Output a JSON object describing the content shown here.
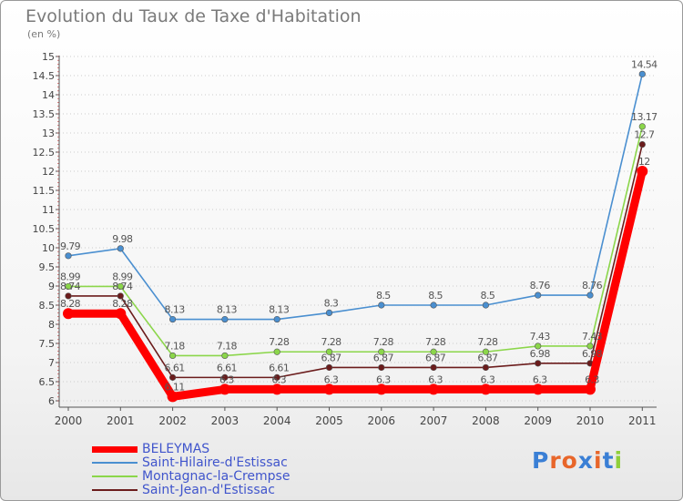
{
  "title": "Evolution du Taux de Taxe d'Habitation",
  "subtitle": "(en %)",
  "colors": {
    "frame_border": "#9a9a9a",
    "axis": "#555555",
    "grid": "#cccccc",
    "tick_text": "#444444",
    "value_text": "#555555",
    "legend_text": "#4055cc"
  },
  "chart_data": {
    "type": "line",
    "title": "Evolution du Taux de Taxe d'Habitation",
    "ylabel": "(en %)",
    "xlabel": "",
    "x": [
      "2000",
      "2001",
      "2002",
      "2003",
      "2004",
      "2005",
      "2006",
      "2007",
      "2008",
      "2009",
      "2010",
      "2011"
    ],
    "ylim": [
      6,
      15
    ],
    "yticks": [
      "6",
      "6.5",
      "7",
      "7.5",
      "8",
      "8.5",
      "9",
      "9.5",
      "10",
      "10.5",
      "11",
      "11.5",
      "12",
      "12.5",
      "13",
      "13.5",
      "14",
      "14.5",
      "15"
    ],
    "grid": "horizontal dotted",
    "legend_position": "bottom-left",
    "series": [
      {
        "name": "BELEYMAS",
        "color": "#ff0000",
        "values": [
          8.28,
          8.28,
          6.11,
          6.3,
          6.3,
          6.3,
          6.3,
          6.3,
          6.3,
          6.3,
          6.3,
          12
        ],
        "labels": [
          "8.28",
          "8.28",
          "6.11",
          "6.3",
          "6.3",
          "6.3",
          "6.3",
          "6.3",
          "6.3",
          "6.3",
          "6.3",
          "12"
        ]
      },
      {
        "name": "Saint-Hilaire-d'Estissac",
        "color": "#4a8fd0",
        "values": [
          9.79,
          9.98,
          8.13,
          8.13,
          8.13,
          8.3,
          8.5,
          8.5,
          8.5,
          8.76,
          8.76,
          14.54
        ],
        "labels": [
          "9.79",
          "9.98",
          "8.13",
          "8.13",
          "8.13",
          "8.3",
          "8.5",
          "8.5",
          "8.5",
          "8.76",
          "8.76",
          "14.54"
        ]
      },
      {
        "name": "Montagnac-la-Crempse",
        "color": "#8bd64a",
        "values": [
          8.99,
          8.99,
          7.18,
          7.18,
          7.28,
          7.28,
          7.28,
          7.28,
          7.28,
          7.43,
          7.43,
          13.17
        ],
        "labels": [
          "8.99",
          "8.99",
          "7.18",
          "7.18",
          "7.28",
          "7.28",
          "7.28",
          "7.28",
          "7.28",
          "7.43",
          "7.43",
          "13.17"
        ]
      },
      {
        "name": "Saint-Jean-d'Estissac",
        "color": "#6b1c1c",
        "values": [
          8.74,
          8.74,
          6.61,
          6.61,
          6.61,
          6.87,
          6.87,
          6.87,
          6.87,
          6.98,
          6.98,
          12.7
        ],
        "labels": [
          "8.74",
          "8.74",
          "6.61",
          "6.61",
          "6.61",
          "6.87",
          "6.87",
          "6.87",
          "6.87",
          "6.98",
          "6.98",
          "12.7"
        ]
      }
    ]
  },
  "legend": {
    "items": [
      {
        "label": "BELEYMAS",
        "color": "#ff0000"
      },
      {
        "label": "Saint-Hilaire-d'Estissac",
        "color": "#4a8fd0"
      },
      {
        "label": "Montagnac-la-Crempse",
        "color": "#8bd64a"
      },
      {
        "label": "Saint-Jean-d'Estissac",
        "color": "#6b1c1c"
      }
    ]
  },
  "logo": {
    "text": "Proxiti",
    "letter_colors": [
      "#3a7fd5",
      "#e8662a",
      "#e8662a",
      "#3a7fd5",
      "#e8662a",
      "#3a7fd5",
      "#8fcf3a"
    ]
  }
}
